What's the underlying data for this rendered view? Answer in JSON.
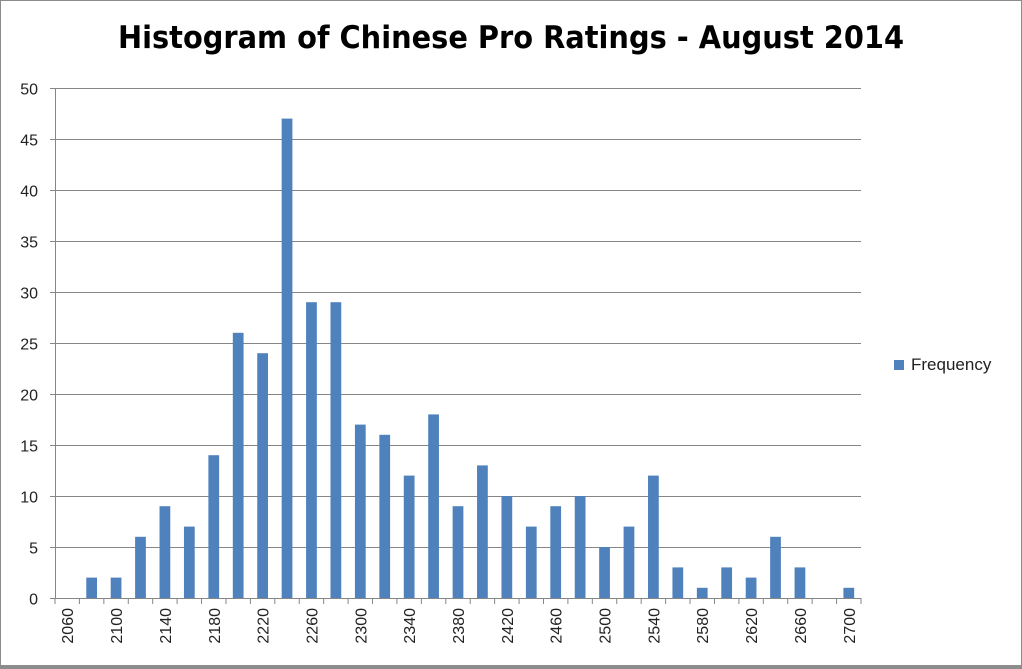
{
  "chart_data": {
    "type": "bar",
    "title": "Histogram of Chinese Pro Ratings - August 2014",
    "xlabel": "",
    "ylabel": "",
    "categories": [
      "2060",
      "2080",
      "2100",
      "2120",
      "2140",
      "2160",
      "2180",
      "2200",
      "2220",
      "2240",
      "2260",
      "2280",
      "2300",
      "2320",
      "2340",
      "2360",
      "2380",
      "2400",
      "2420",
      "2440",
      "2460",
      "2480",
      "2500",
      "2520",
      "2540",
      "2560",
      "2580",
      "2600",
      "2620",
      "2640",
      "2660",
      "2680",
      "2700"
    ],
    "tick_labels": [
      "2060",
      "2100",
      "2140",
      "2180",
      "2220",
      "2260",
      "2300",
      "2340",
      "2380",
      "2420",
      "2460",
      "2500",
      "2540",
      "2580",
      "2620",
      "2660",
      "2700"
    ],
    "series": [
      {
        "name": "Frequency",
        "color": "#4f81bd",
        "values": [
          0,
          2,
          2,
          6,
          9,
          7,
          14,
          26,
          24,
          47,
          29,
          29,
          17,
          16,
          12,
          18,
          9,
          13,
          10,
          7,
          9,
          10,
          5,
          7,
          12,
          3,
          1,
          3,
          2,
          6,
          3,
          0,
          1
        ]
      }
    ],
    "ylim": [
      0,
      50
    ],
    "yticks": [
      0,
      5,
      10,
      15,
      20,
      25,
      30,
      35,
      40,
      45,
      50
    ],
    "grid": true,
    "legend_position": "right"
  }
}
